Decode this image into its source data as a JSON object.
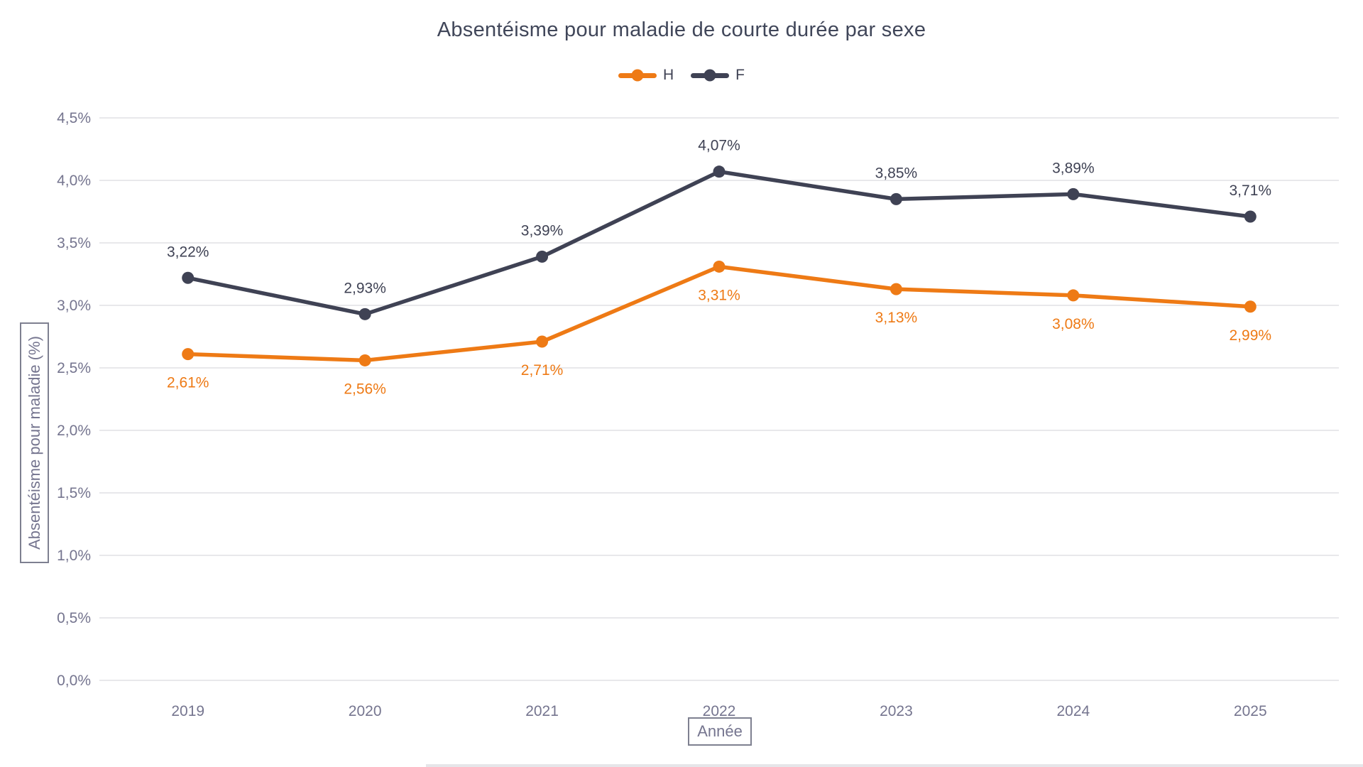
{
  "title": "Absentéisme pour maladie de courte durée par sexe",
  "legend": {
    "items": [
      {
        "label": "H",
        "color": "#EE7A15"
      },
      {
        "label": "F",
        "color": "#3F4254"
      }
    ]
  },
  "axes": {
    "x_title": "Année",
    "y_title": "Absentéisme pour maladie (%)",
    "x_tick_labels": [
      "2019",
      "2020",
      "2021",
      "2022",
      "2023",
      "2024",
      "2025"
    ],
    "y_tick_labels": [
      "0,0%",
      "0,5%",
      "1,0%",
      "1,5%",
      "2,0%",
      "2,5%",
      "3,0%",
      "3,5%",
      "4,0%",
      "4,5%"
    ]
  },
  "chart_data": {
    "type": "line",
    "title": "Absentéisme pour maladie de courte durée par sexe",
    "xlabel": "Année",
    "ylabel": "Absentéisme pour maladie (%)",
    "categories": [
      "2019",
      "2020",
      "2021",
      "2022",
      "2023",
      "2024",
      "2025"
    ],
    "series": [
      {
        "name": "H",
        "color": "#EE7A15",
        "values": [
          2.61,
          2.56,
          2.71,
          3.31,
          3.13,
          3.08,
          2.99
        ],
        "labels": [
          "2,61%",
          "2,56%",
          "2,71%",
          "3,31%",
          "3,13%",
          "3,08%",
          "2,99%"
        ],
        "label_position": "below"
      },
      {
        "name": "F",
        "color": "#3F4254",
        "values": [
          3.22,
          2.93,
          3.39,
          4.07,
          3.85,
          3.89,
          3.71
        ],
        "labels": [
          "3,22%",
          "2,93%",
          "3,39%",
          "4,07%",
          "3,85%",
          "3,89%",
          "3,71%"
        ],
        "label_position": "above"
      }
    ],
    "ylim": [
      0,
      4.5
    ],
    "y_step": 0.5,
    "grid": true,
    "legend_position": "top"
  },
  "colors": {
    "background": "#FFFFFF",
    "gridline": "#E8E8EB",
    "tick_text": "#75758F",
    "title_text": "#404659",
    "axis_box_border": "#7E8090",
    "series_h": "#EE7A15",
    "series_f": "#3F4254"
  }
}
